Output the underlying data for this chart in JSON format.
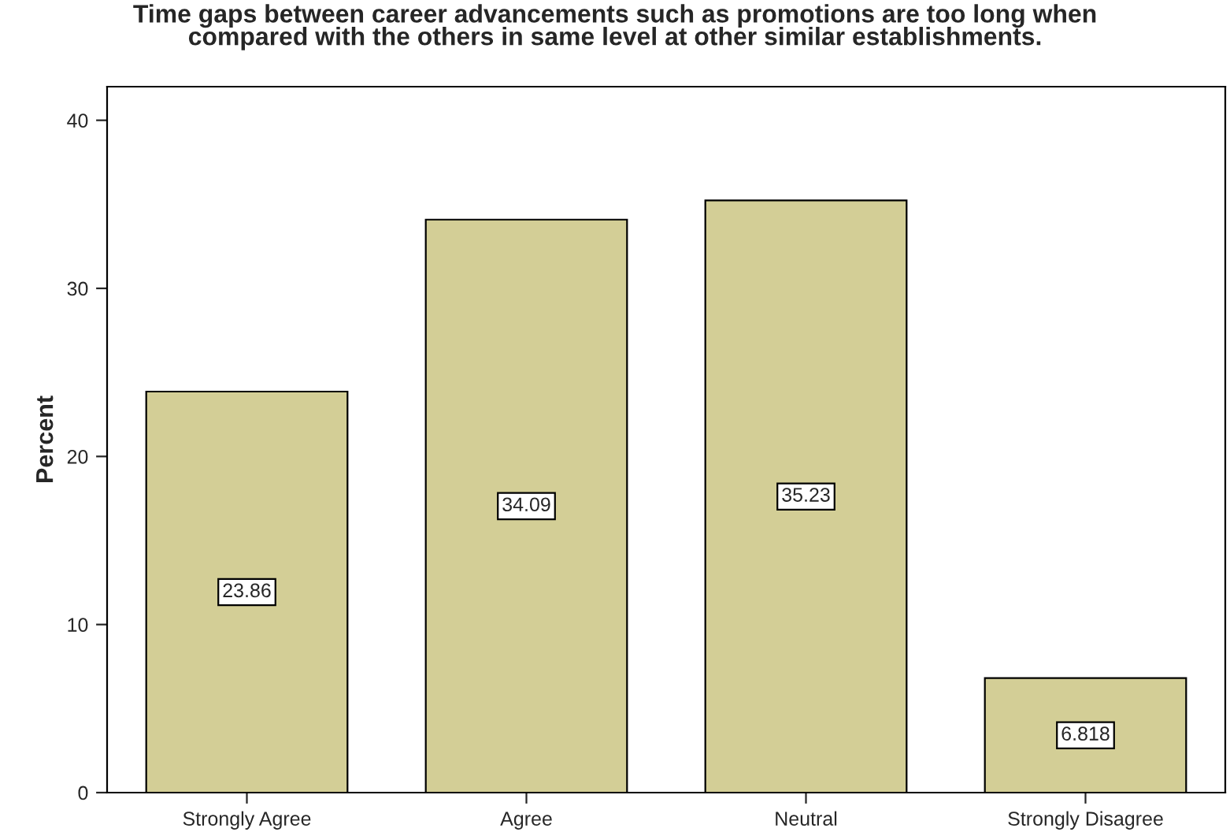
{
  "chart_data": {
    "type": "bar",
    "title": "Time gaps between career advancements such as promotions are too long when\ncompared with the others in same level at other similar establishments.",
    "ylabel": "Percent",
    "categories": [
      "Strongly Agree",
      "Agree",
      "Neutral",
      "Strongly Disagree"
    ],
    "values": [
      23.86,
      34.09,
      35.23,
      6.818
    ],
    "color": "#d3ce96",
    "ylim": [
      0,
      42
    ],
    "yticks": [
      0,
      10,
      20,
      30,
      40
    ],
    "data_labels": true,
    "grid": false,
    "legend": false
  }
}
